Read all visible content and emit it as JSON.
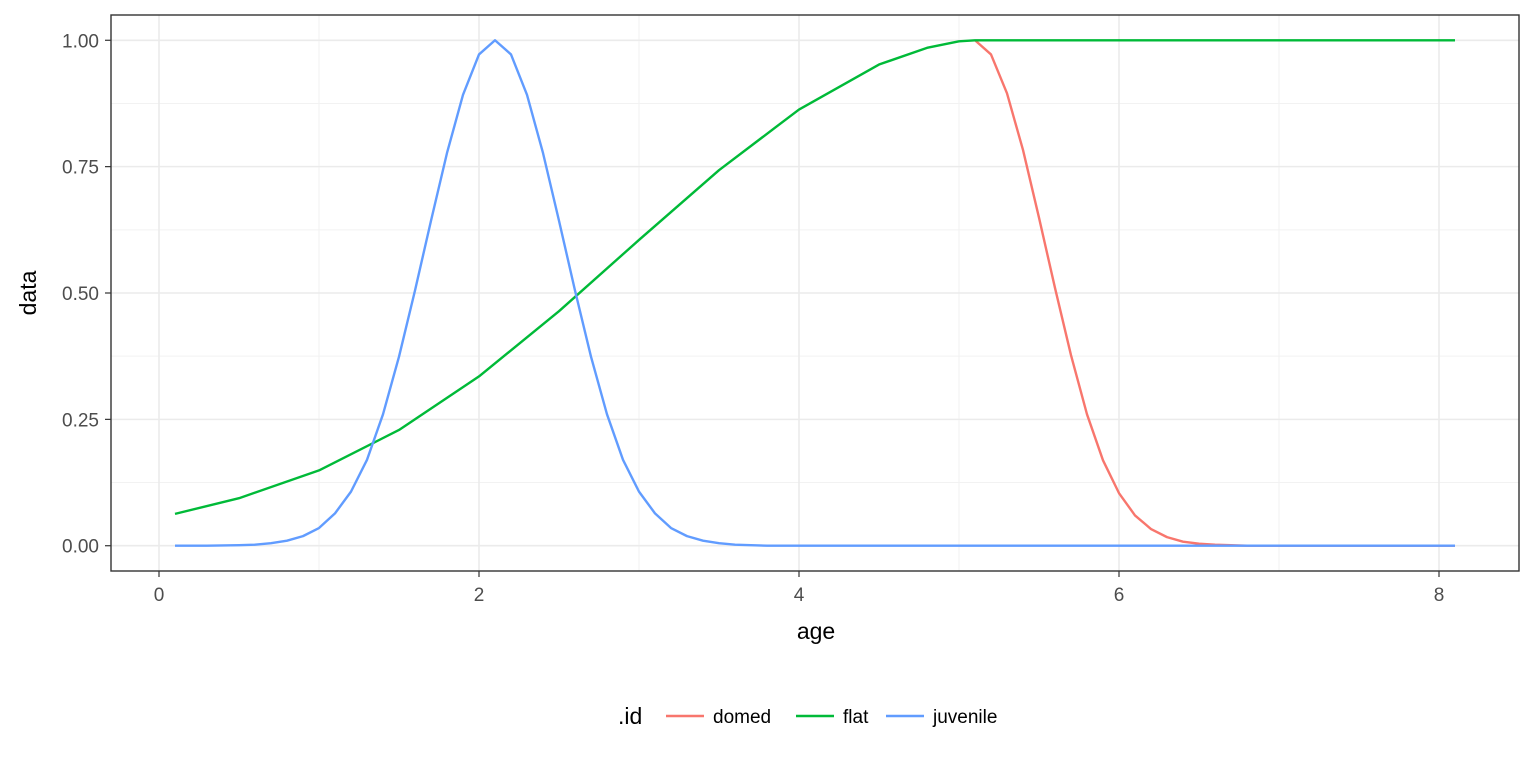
{
  "chart_data": {
    "type": "line",
    "xlabel": "age",
    "ylabel": "data",
    "xlim": [
      -0.3,
      8.5
    ],
    "ylim": [
      -0.05,
      1.05
    ],
    "x_ticks": [
      0,
      2,
      4,
      6,
      8
    ],
    "x_tick_labels": [
      "0",
      "2",
      "4",
      "6",
      "8"
    ],
    "y_ticks": [
      0,
      0.25,
      0.5,
      0.75,
      1.0
    ],
    "y_tick_labels": [
      "0.00",
      "0.25",
      "0.50",
      "0.75",
      "1.00"
    ],
    "grid": true,
    "legend": {
      "title": ".id",
      "position": "bottom",
      "entries": [
        "domed",
        "flat",
        "juvenile"
      ]
    },
    "series": [
      {
        "name": "domed",
        "color": "#F8766D",
        "x": [
          5.1,
          5.2,
          5.3,
          5.4,
          5.5,
          5.6,
          5.7,
          5.8,
          5.9,
          6.0,
          6.1,
          6.2,
          6.3,
          6.4,
          6.5,
          6.6,
          6.7,
          6.8,
          7.0,
          7.5,
          8.1
        ],
        "y": [
          1.0,
          0.972,
          0.895,
          0.783,
          0.649,
          0.51,
          0.377,
          0.26,
          0.169,
          0.104,
          0.06,
          0.033,
          0.017,
          0.008,
          0.004,
          0.002,
          0.001,
          0.0,
          0.0,
          0.0,
          0.0
        ]
      },
      {
        "name": "flat",
        "color": "#00BA38",
        "x": [
          0.1,
          0.5,
          1.0,
          1.5,
          2.0,
          2.5,
          3.0,
          3.5,
          4.0,
          4.5,
          4.8,
          5.0,
          5.1,
          5.5,
          6.0,
          6.5,
          7.0,
          7.5,
          8.1
        ],
        "y": [
          0.063,
          0.094,
          0.149,
          0.229,
          0.335,
          0.464,
          0.605,
          0.743,
          0.863,
          0.952,
          0.985,
          0.998,
          1.0,
          1.0,
          1.0,
          1.0,
          1.0,
          1.0,
          1.0
        ]
      },
      {
        "name": "juvenile",
        "color": "#619CFF",
        "x": [
          0.1,
          0.3,
          0.5,
          0.6,
          0.7,
          0.8,
          0.9,
          1.0,
          1.1,
          1.2,
          1.3,
          1.4,
          1.5,
          1.6,
          1.7,
          1.8,
          1.9,
          2.0,
          2.1,
          2.2,
          2.3,
          2.4,
          2.5,
          2.6,
          2.7,
          2.8,
          2.9,
          3.0,
          3.1,
          3.2,
          3.3,
          3.4,
          3.5,
          3.6,
          3.7,
          3.8,
          4.0,
          5.0,
          6.0,
          7.0,
          8.1
        ],
        "y": [
          0.0,
          0.0,
          0.001,
          0.002,
          0.005,
          0.01,
          0.019,
          0.035,
          0.064,
          0.107,
          0.17,
          0.26,
          0.374,
          0.505,
          0.643,
          0.777,
          0.892,
          0.972,
          1.0,
          0.972,
          0.892,
          0.777,
          0.643,
          0.505,
          0.374,
          0.26,
          0.17,
          0.107,
          0.064,
          0.035,
          0.019,
          0.01,
          0.005,
          0.002,
          0.001,
          0.0,
          0.0,
          0.0,
          0.0,
          0.0,
          0.0
        ]
      }
    ]
  }
}
